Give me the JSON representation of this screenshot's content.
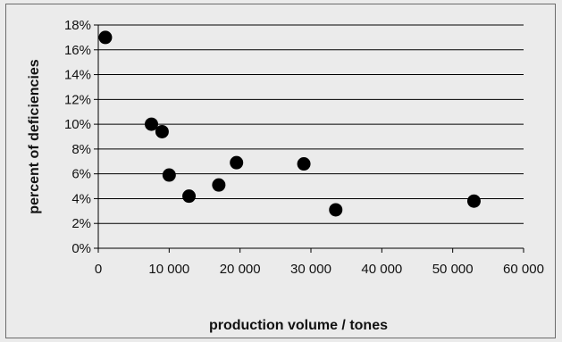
{
  "chart_data": {
    "type": "scatter",
    "title": "",
    "xlabel": "production volume / tones",
    "ylabel": "percent of deficiencies",
    "xlim": [
      0,
      60000
    ],
    "ylim": [
      0,
      18
    ],
    "x_ticks": [
      0,
      10000,
      20000,
      30000,
      40000,
      50000,
      60000
    ],
    "x_tick_labels": [
      "0",
      "10 000",
      "20 000",
      "30 000",
      "40 000",
      "50 000",
      "60 000"
    ],
    "y_ticks": [
      0,
      2,
      4,
      6,
      8,
      10,
      12,
      14,
      16,
      18
    ],
    "y_tick_labels": [
      "0%",
      "2%",
      "4%",
      "6%",
      "8%",
      "10%",
      "12%",
      "14%",
      "16%",
      "18%"
    ],
    "grid": "horizontal",
    "legend": "none",
    "marker_color": "#000000",
    "points": [
      {
        "x": 1000,
        "y": 17.0
      },
      {
        "x": 7500,
        "y": 10.0
      },
      {
        "x": 9000,
        "y": 9.4
      },
      {
        "x": 10000,
        "y": 5.9
      },
      {
        "x": 12800,
        "y": 4.2
      },
      {
        "x": 17000,
        "y": 5.1
      },
      {
        "x": 19500,
        "y": 6.9
      },
      {
        "x": 29000,
        "y": 6.8
      },
      {
        "x": 33500,
        "y": 3.1
      },
      {
        "x": 53000,
        "y": 3.8
      }
    ]
  }
}
